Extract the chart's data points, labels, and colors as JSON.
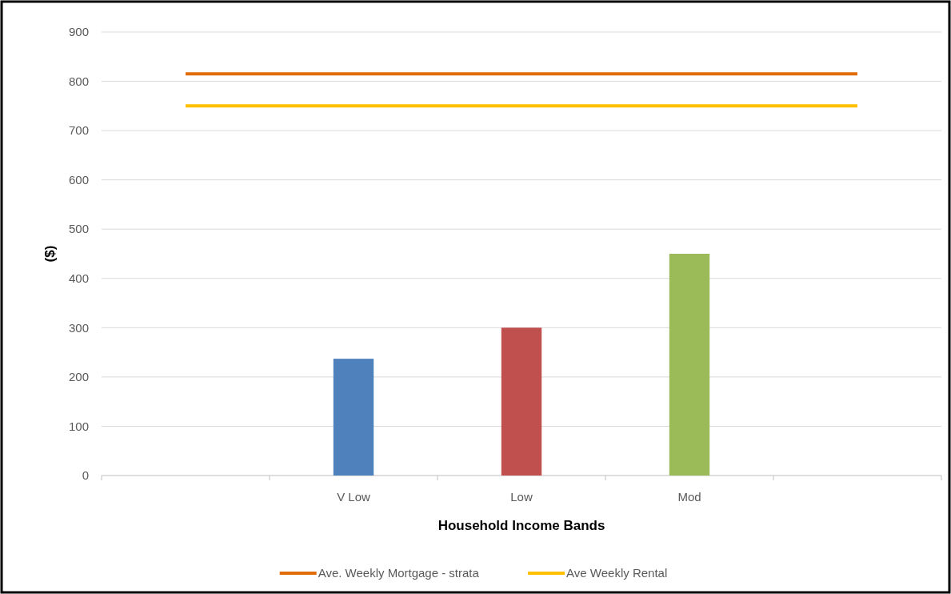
{
  "chart_data": {
    "type": "bar",
    "xlabel": "Household  Income Bands",
    "ylabel": "($)",
    "categories": [
      null,
      "V Low",
      "Low",
      "Mod",
      null
    ],
    "series": [
      {
        "colors": [
          null,
          "#4f81bd",
          "#c0504d",
          "#9bbb59",
          null
        ],
        "values": [
          null,
          237,
          300,
          450,
          null
        ]
      },
      {
        "type": "line",
        "name": "Ave. Weekly Mortgage - strata",
        "color": "#e36c0a",
        "values": [
          815,
          815,
          815,
          815,
          815
        ]
      },
      {
        "type": "line",
        "name": "Ave Weekly Rental",
        "color": "#ffc000",
        "values": [
          750,
          750,
          750,
          750,
          750
        ]
      }
    ],
    "ylim": [
      0,
      900
    ],
    "yticks": [
      0,
      100,
      200,
      300,
      400,
      500,
      600,
      700,
      800,
      900
    ],
    "grid": "y",
    "legend": "bottom",
    "marker": "none"
  }
}
